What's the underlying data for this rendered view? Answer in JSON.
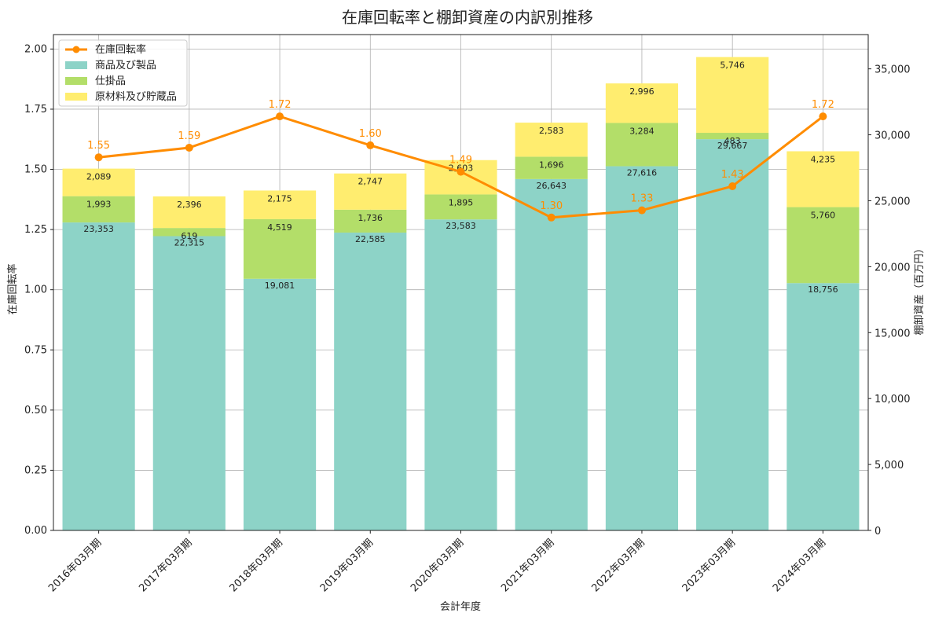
{
  "chart_data": {
    "type": "bar",
    "title": "在庫回転率と棚卸資産の内訳別推移",
    "xlabel": "会計年度",
    "ylabel": "在庫回転率",
    "y2label": "棚卸資産（百万円）",
    "categories": [
      "2016年03月期",
      "2017年03月期",
      "2018年03月期",
      "2019年03月期",
      "2020年03月期",
      "2021年03月期",
      "2022年03月期",
      "2023年03月期",
      "2024年03月期"
    ],
    "ylim": [
      0,
      2.06
    ],
    "y2lim": [
      0,
      37600
    ],
    "yticks": [
      "0.00",
      "0.25",
      "0.50",
      "0.75",
      "1.00",
      "1.25",
      "1.50",
      "1.75",
      "2.00"
    ],
    "y2ticks": [
      "0",
      "5,000",
      "10,000",
      "15,000",
      "20,000",
      "25,000",
      "30,000",
      "35,000"
    ],
    "grid": true,
    "legend_position": "top-left",
    "series": [
      {
        "name": "商品及び製品",
        "type": "bar",
        "axis": "right",
        "color": "#8dd3c7",
        "values": [
          23353,
          22315,
          19081,
          22585,
          23583,
          26643,
          27616,
          29667,
          18756
        ],
        "labels": [
          "23,353",
          "22,315",
          "19,081",
          "22,585",
          "23,583",
          "26,643",
          "27,616",
          "29,667",
          "18,756"
        ]
      },
      {
        "name": "仕掛品",
        "type": "bar",
        "axis": "right",
        "color": "#b3de69",
        "values": [
          1993,
          619,
          4519,
          1736,
          1895,
          1696,
          3284,
          483,
          5760
        ],
        "labels": [
          "1,993",
          "619",
          "4,519",
          "1,736",
          "1,895",
          "1,696",
          "3,284",
          "483",
          "5,760"
        ]
      },
      {
        "name": "原材料及び貯蔵品",
        "type": "bar",
        "axis": "right",
        "color": "#ffed6f",
        "values": [
          2089,
          2396,
          2175,
          2747,
          2603,
          2583,
          2996,
          5746,
          4235
        ],
        "labels": [
          "2,089",
          "2,396",
          "2,175",
          "2,747",
          "2,603",
          "2,583",
          "2,996",
          "5,746",
          "4,235"
        ]
      },
      {
        "name": "在庫回転率",
        "type": "line",
        "axis": "left",
        "color": "#ff8c00",
        "values": [
          1.55,
          1.59,
          1.72,
          1.6,
          1.49,
          1.3,
          1.33,
          1.43,
          1.72
        ],
        "labels": [
          "1.55",
          "1.59",
          "1.72",
          "1.60",
          "1.49",
          "1.30",
          "1.33",
          "1.43",
          "1.72"
        ]
      }
    ]
  }
}
